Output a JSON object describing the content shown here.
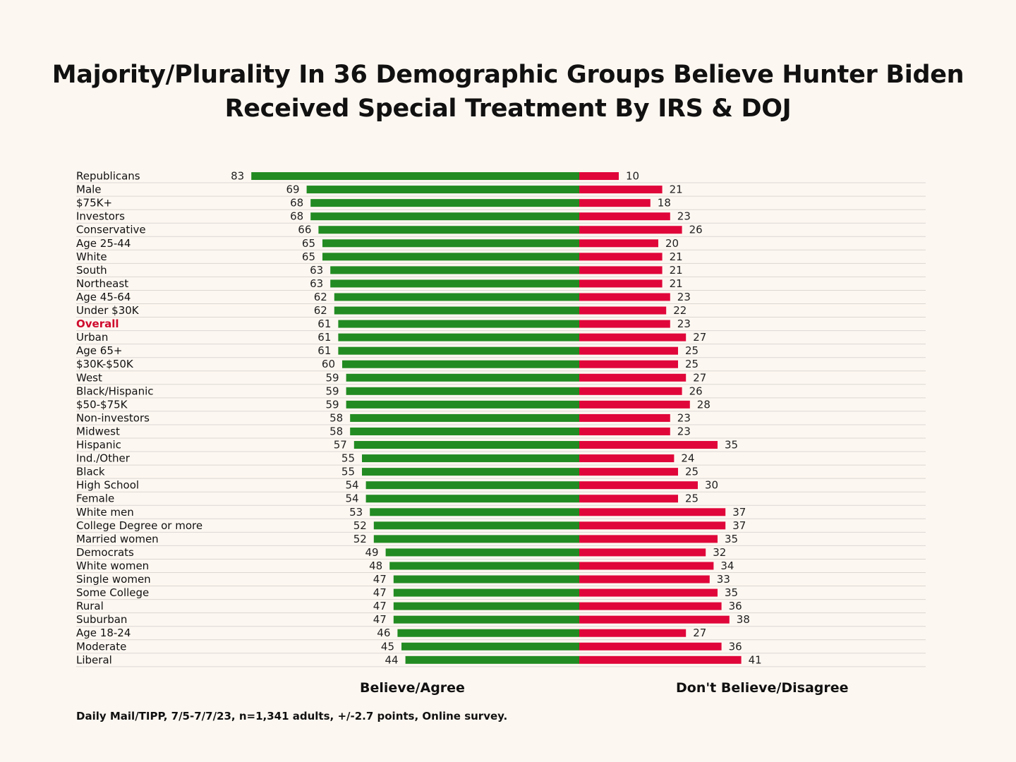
{
  "chart_data": {
    "type": "bar",
    "title": "Majority/Plurality In 36 Demographic Groups Believe Hunter Biden Received Special Treatment By IRS & DOJ",
    "title_lines": [
      "Majority/Plurality In 36 Demographic Groups Believe Hunter Biden",
      "Received Special Treatment By IRS & DOJ"
    ],
    "orientation": "horizontal-diverging",
    "categories": [
      "Republicans",
      "Male",
      "$75K+",
      "Investors",
      "Conservative",
      "Age 25-44",
      "White",
      "South",
      "Northeast",
      "Age 45-64",
      "Under $30K",
      "Overall",
      "Urban",
      "Age 65+",
      "$30K-$50K",
      "West",
      "Black/Hispanic",
      "$50-$75K",
      "Non-investors",
      "Midwest",
      "Hispanic",
      "Ind./Other",
      "Black",
      "High School",
      "Female",
      "White men",
      "College Degree or more",
      "Married women",
      "Democrats",
      "White women",
      "Single women",
      "Some College",
      "Rural",
      "Suburban",
      "Age 18-24",
      "Moderate",
      "Liberal"
    ],
    "highlight_category": "Overall",
    "series": [
      {
        "name": "Believe/Agree",
        "color": "#228b22",
        "values": [
          83,
          69,
          68,
          68,
          66,
          65,
          65,
          63,
          63,
          62,
          62,
          61,
          61,
          61,
          60,
          59,
          59,
          59,
          58,
          58,
          57,
          55,
          55,
          54,
          54,
          53,
          52,
          52,
          49,
          48,
          47,
          47,
          47,
          47,
          46,
          45,
          44
        ]
      },
      {
        "name": "Don't Believe/Disagree",
        "color": "#e0063a",
        "values": [
          10,
          21,
          18,
          23,
          26,
          20,
          21,
          21,
          21,
          23,
          22,
          23,
          27,
          25,
          25,
          27,
          26,
          28,
          23,
          23,
          35,
          24,
          25,
          30,
          25,
          37,
          37,
          35,
          32,
          34,
          33,
          35,
          36,
          38,
          27,
          36,
          41
        ]
      }
    ],
    "xlim": [
      0,
      100
    ],
    "xlabel_left": "Believe/Agree",
    "xlabel_right": "Don't Believe/Disagree",
    "grid": "horizontal row separators",
    "source": "Daily Mail/TIPP, 7/5-7/7/23, n=1,341 adults, +/-2.7 points, Online survey."
  }
}
